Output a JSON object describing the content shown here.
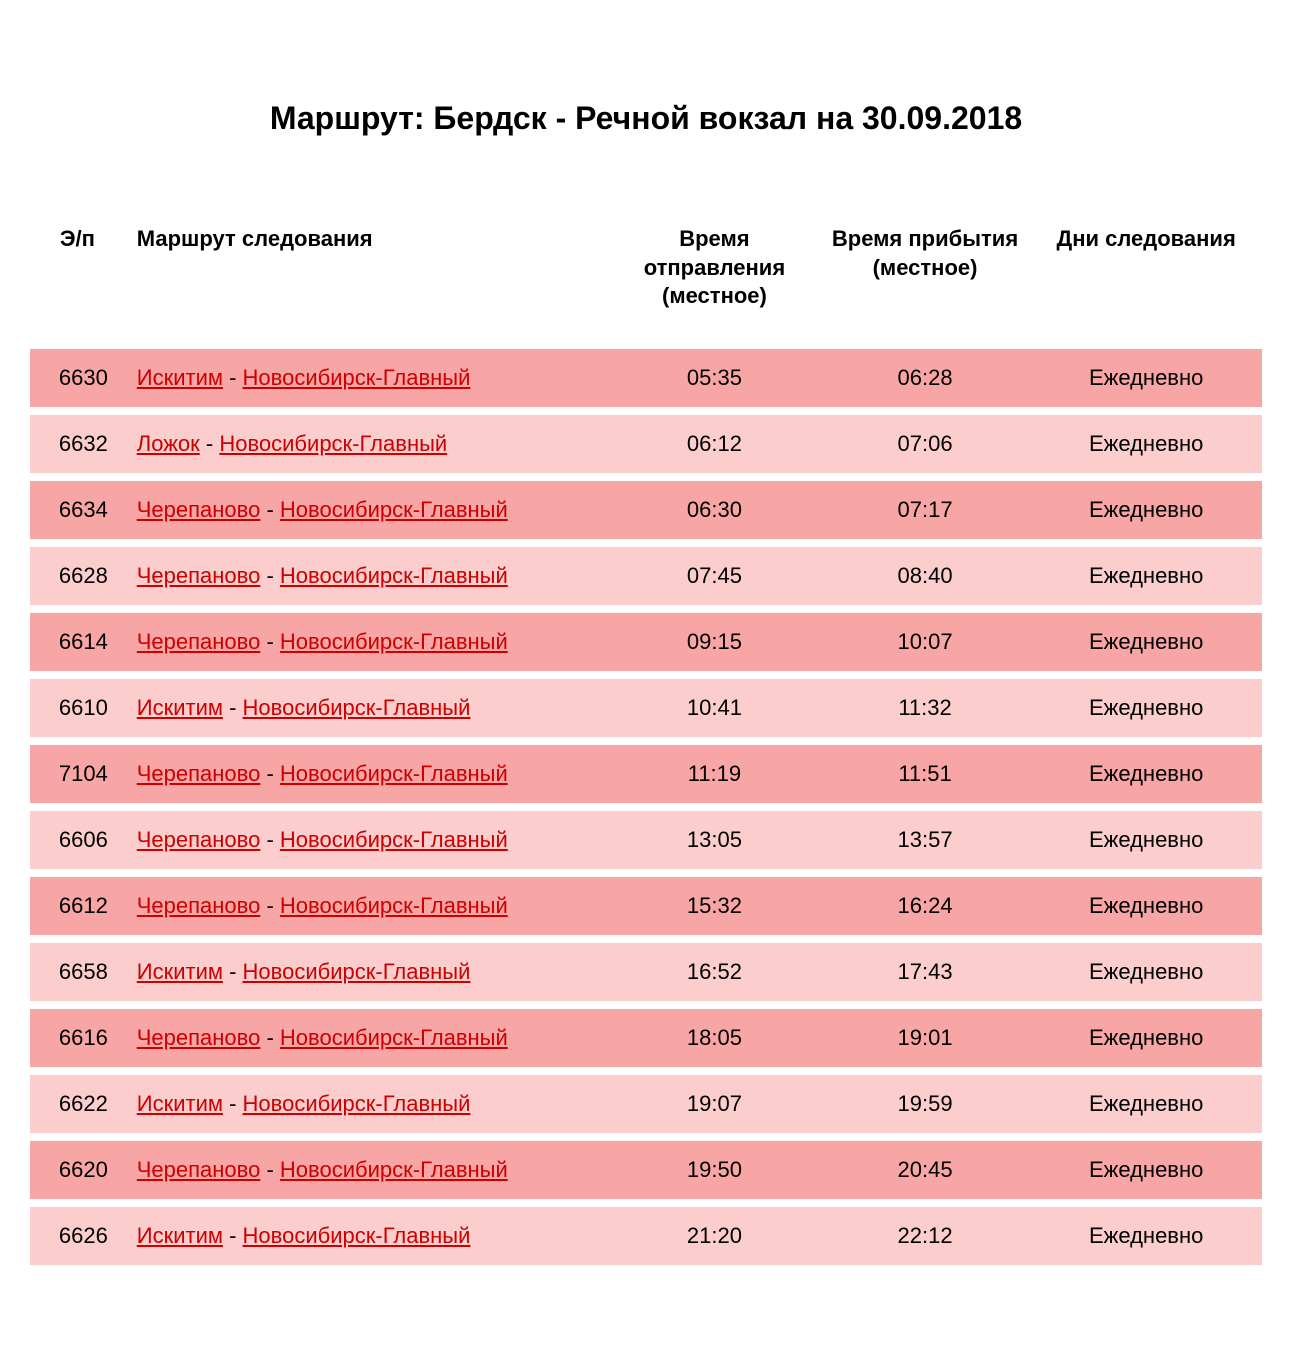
{
  "title": "Маршрут: Бердск - Речной вокзал на 30.09.2018",
  "table": {
    "columns": [
      {
        "key": "num",
        "label": "Э/п",
        "align": "center"
      },
      {
        "key": "route",
        "label": "Маршрут следования",
        "align": "left"
      },
      {
        "key": "dep",
        "label": "Время отправления (местное)",
        "align": "center"
      },
      {
        "key": "arr",
        "label": "Время прибытия (местное)",
        "align": "center"
      },
      {
        "key": "days",
        "label": "Дни следования",
        "align": "center"
      }
    ],
    "row_colors": {
      "dark": "#f7a5a5",
      "light": "#fbcdcd"
    },
    "link_color": "#cc0000",
    "header_fontsize": 22,
    "cell_fontsize": 22,
    "title_fontsize": 32,
    "background_color": "#ffffff",
    "route_separator": " - ",
    "rows": [
      {
        "num": "6630",
        "from": "Искитим",
        "to": "Новосибирск-Главный",
        "dep": "05:35",
        "arr": "06:28",
        "days": "Ежедневно"
      },
      {
        "num": "6632",
        "from": "Ложок",
        "to": "Новосибирск-Главный",
        "dep": "06:12",
        "arr": "07:06",
        "days": "Ежедневно"
      },
      {
        "num": "6634",
        "from": "Черепаново",
        "to": "Новосибирск-Главный",
        "dep": "06:30",
        "arr": "07:17",
        "days": "Ежедневно"
      },
      {
        "num": "6628",
        "from": "Черепаново",
        "to": "Новосибирск-Главный",
        "dep": "07:45",
        "arr": "08:40",
        "days": "Ежедневно"
      },
      {
        "num": "6614",
        "from": "Черепаново",
        "to": "Новосибирск-Главный",
        "dep": "09:15",
        "arr": "10:07",
        "days": "Ежедневно"
      },
      {
        "num": "6610",
        "from": "Искитим",
        "to": "Новосибирск-Главный",
        "dep": "10:41",
        "arr": "11:32",
        "days": "Ежедневно"
      },
      {
        "num": "7104",
        "from": "Черепаново",
        "to": "Новосибирск-Главный",
        "dep": "11:19",
        "arr": "11:51",
        "days": "Ежедневно"
      },
      {
        "num": "6606",
        "from": "Черепаново",
        "to": "Новосибирск-Главный",
        "dep": "13:05",
        "arr": "13:57",
        "days": "Ежедневно"
      },
      {
        "num": "6612",
        "from": "Черепаново",
        "to": "Новосибирск-Главный",
        "dep": "15:32",
        "arr": "16:24",
        "days": "Ежедневно"
      },
      {
        "num": "6658",
        "from": "Искитим",
        "to": "Новосибирск-Главный",
        "dep": "16:52",
        "arr": "17:43",
        "days": "Ежедневно"
      },
      {
        "num": "6616",
        "from": "Черепаново",
        "to": "Новосибирск-Главный",
        "dep": "18:05",
        "arr": "19:01",
        "days": "Ежедневно"
      },
      {
        "num": "6622",
        "from": "Искитим",
        "to": "Новосибирск-Главный",
        "dep": "19:07",
        "arr": "19:59",
        "days": "Ежедневно"
      },
      {
        "num": "6620",
        "from": "Черепаново",
        "to": "Новосибирск-Главный",
        "dep": "19:50",
        "arr": "20:45",
        "days": "Ежедневно"
      },
      {
        "num": "6626",
        "from": "Искитим",
        "to": "Новосибирск-Главный",
        "dep": "21:20",
        "arr": "22:12",
        "days": "Ежедневно"
      }
    ]
  }
}
